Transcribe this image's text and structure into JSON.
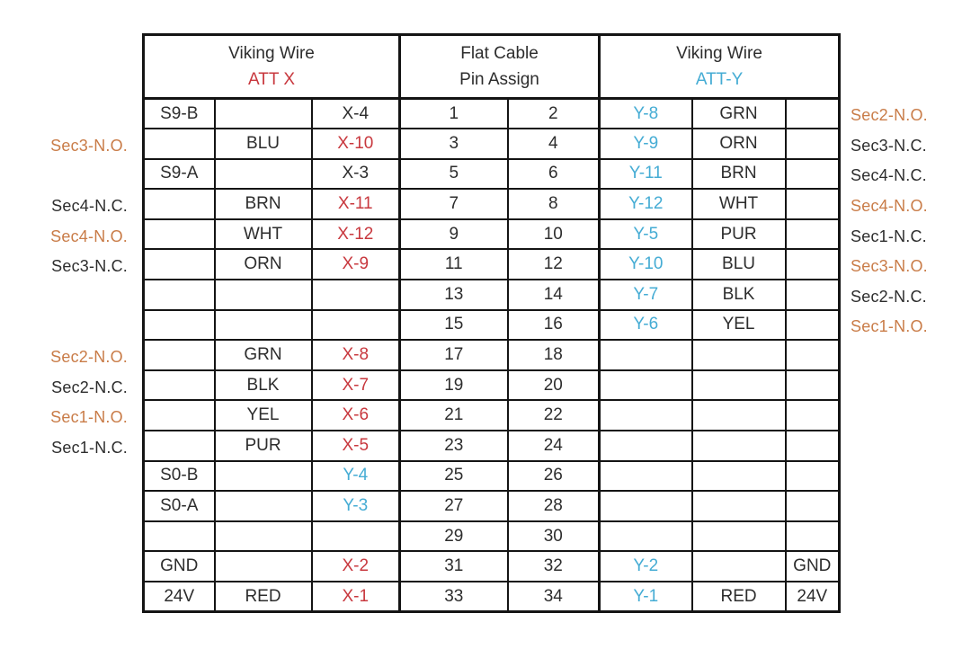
{
  "colors": {
    "red": "#c8383e",
    "cyan": "#45acd4",
    "orange": "#c97c48",
    "black": "#2d2d2d",
    "border": "#141414"
  },
  "header": {
    "left": {
      "line1": "Viking Wire",
      "line2": "ATT X"
    },
    "center": {
      "line1": "Flat Cable",
      "line2": "Pin Assign"
    },
    "right": {
      "line1": "Viking Wire",
      "line2": "ATT-Y"
    }
  },
  "rows": [
    {
      "left_label": null,
      "x": {
        "signal": "S9-B",
        "wire": "",
        "pin": "X-4",
        "pin_color": "black"
      },
      "flat_cable": [
        "1",
        "2"
      ],
      "y": {
        "pin": "Y-8",
        "pin_color": "cyan",
        "wire": "GRN",
        "terminal": ""
      },
      "right_label": {
        "text": "Sec2-N.O.",
        "color": "orange"
      }
    },
    {
      "left_label": {
        "text": "Sec3-N.O.",
        "color": "orange"
      },
      "x": {
        "signal": "",
        "wire": "BLU",
        "pin": "X-10",
        "pin_color": "red"
      },
      "flat_cable": [
        "3",
        "4"
      ],
      "y": {
        "pin": "Y-9",
        "pin_color": "cyan",
        "wire": "ORN",
        "terminal": ""
      },
      "right_label": {
        "text": "Sec3-N.C.",
        "color": "black"
      }
    },
    {
      "left_label": null,
      "x": {
        "signal": "S9-A",
        "wire": "",
        "pin": "X-3",
        "pin_color": "black"
      },
      "flat_cable": [
        "5",
        "6"
      ],
      "y": {
        "pin": "Y-11",
        "pin_color": "cyan",
        "wire": "BRN",
        "terminal": ""
      },
      "right_label": {
        "text": "Sec4-N.C.",
        "color": "black"
      }
    },
    {
      "left_label": {
        "text": "Sec4-N.C.",
        "color": "black"
      },
      "x": {
        "signal": "",
        "wire": "BRN",
        "pin": "X-11",
        "pin_color": "red"
      },
      "flat_cable": [
        "7",
        "8"
      ],
      "y": {
        "pin": "Y-12",
        "pin_color": "cyan",
        "wire": "WHT",
        "terminal": ""
      },
      "right_label": {
        "text": "Sec4-N.O.",
        "color": "orange"
      }
    },
    {
      "left_label": {
        "text": "Sec4-N.O.",
        "color": "orange"
      },
      "x": {
        "signal": "",
        "wire": "WHT",
        "pin": "X-12",
        "pin_color": "red"
      },
      "flat_cable": [
        "9",
        "10"
      ],
      "y": {
        "pin": "Y-5",
        "pin_color": "cyan",
        "wire": "PUR",
        "terminal": ""
      },
      "right_label": {
        "text": "Sec1-N.C.",
        "color": "black"
      }
    },
    {
      "left_label": {
        "text": "Sec3-N.C.",
        "color": "black"
      },
      "x": {
        "signal": "",
        "wire": "ORN",
        "pin": "X-9",
        "pin_color": "red"
      },
      "flat_cable": [
        "11",
        "12"
      ],
      "y": {
        "pin": "Y-10",
        "pin_color": "cyan",
        "wire": "BLU",
        "terminal": ""
      },
      "right_label": {
        "text": "Sec3-N.O.",
        "color": "orange"
      }
    },
    {
      "left_label": null,
      "x": {
        "signal": "",
        "wire": "",
        "pin": "",
        "pin_color": ""
      },
      "flat_cable": [
        "13",
        "14"
      ],
      "y": {
        "pin": "Y-7",
        "pin_color": "cyan",
        "wire": "BLK",
        "terminal": ""
      },
      "right_label": {
        "text": "Sec2-N.C.",
        "color": "black"
      }
    },
    {
      "left_label": null,
      "x": {
        "signal": "",
        "wire": "",
        "pin": "",
        "pin_color": ""
      },
      "flat_cable": [
        "15",
        "16"
      ],
      "y": {
        "pin": "Y-6",
        "pin_color": "cyan",
        "wire": "YEL",
        "terminal": ""
      },
      "right_label": {
        "text": "Sec1-N.O.",
        "color": "orange"
      }
    },
    {
      "left_label": {
        "text": "Sec2-N.O.",
        "color": "orange"
      },
      "x": {
        "signal": "",
        "wire": "GRN",
        "pin": "X-8",
        "pin_color": "red"
      },
      "flat_cable": [
        "17",
        "18"
      ],
      "y": {
        "pin": "",
        "pin_color": "",
        "wire": "",
        "terminal": ""
      },
      "right_label": null
    },
    {
      "left_label": {
        "text": "Sec2-N.C.",
        "color": "black"
      },
      "x": {
        "signal": "",
        "wire": "BLK",
        "pin": "X-7",
        "pin_color": "red"
      },
      "flat_cable": [
        "19",
        "20"
      ],
      "y": {
        "pin": "",
        "pin_color": "",
        "wire": "",
        "terminal": ""
      },
      "right_label": null
    },
    {
      "left_label": {
        "text": "Sec1-N.O.",
        "color": "orange"
      },
      "x": {
        "signal": "",
        "wire": "YEL",
        "pin": "X-6",
        "pin_color": "red"
      },
      "flat_cable": [
        "21",
        "22"
      ],
      "y": {
        "pin": "",
        "pin_color": "",
        "wire": "",
        "terminal": ""
      },
      "right_label": null
    },
    {
      "left_label": {
        "text": "Sec1-N.C.",
        "color": "black"
      },
      "x": {
        "signal": "",
        "wire": "PUR",
        "pin": "X-5",
        "pin_color": "red"
      },
      "flat_cable": [
        "23",
        "24"
      ],
      "y": {
        "pin": "",
        "pin_color": "",
        "wire": "",
        "terminal": ""
      },
      "right_label": null
    },
    {
      "left_label": null,
      "x": {
        "signal": "S0-B",
        "wire": "",
        "pin": "Y-4",
        "pin_color": "cyan"
      },
      "flat_cable": [
        "25",
        "26"
      ],
      "y": {
        "pin": "",
        "pin_color": "",
        "wire": "",
        "terminal": ""
      },
      "right_label": null
    },
    {
      "left_label": null,
      "x": {
        "signal": "S0-A",
        "wire": "",
        "pin": "Y-3",
        "pin_color": "cyan"
      },
      "flat_cable": [
        "27",
        "28"
      ],
      "y": {
        "pin": "",
        "pin_color": "",
        "wire": "",
        "terminal": ""
      },
      "right_label": null
    },
    {
      "left_label": null,
      "x": {
        "signal": "",
        "wire": "",
        "pin": "",
        "pin_color": ""
      },
      "flat_cable": [
        "29",
        "30"
      ],
      "y": {
        "pin": "",
        "pin_color": "",
        "wire": "",
        "terminal": ""
      },
      "right_label": null
    },
    {
      "left_label": null,
      "x": {
        "signal": "GND",
        "wire": "",
        "pin": "X-2",
        "pin_color": "red"
      },
      "flat_cable": [
        "31",
        "32"
      ],
      "y": {
        "pin": "Y-2",
        "pin_color": "cyan",
        "wire": "",
        "terminal": "GND"
      },
      "right_label": null
    },
    {
      "left_label": null,
      "x": {
        "signal": "24V",
        "wire": "RED",
        "pin": "X-1",
        "pin_color": "red"
      },
      "flat_cable": [
        "33",
        "34"
      ],
      "y": {
        "pin": "Y-1",
        "pin_color": "cyan",
        "wire": "RED",
        "terminal": "24V"
      },
      "right_label": null
    }
  ]
}
